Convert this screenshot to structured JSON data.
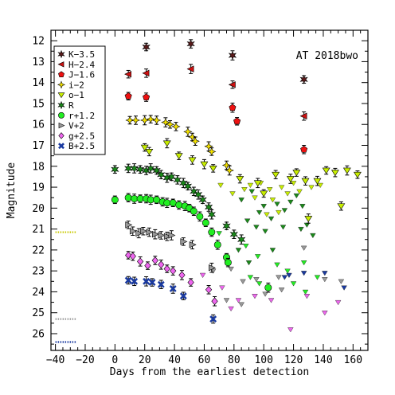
{
  "chart_data": {
    "type": "scatter",
    "title": "",
    "annotation": "AT 2018bwo",
    "xlabel": "Days from the earliest detection",
    "ylabel": "Magnitude",
    "xlim": [
      -43,
      170
    ],
    "ylim": [
      26.8,
      11.5
    ],
    "y_inverted": true,
    "grid": false,
    "legend_position": "top-left",
    "x_ticks": [
      -40,
      -20,
      0,
      20,
      40,
      60,
      80,
      100,
      120,
      140,
      160
    ],
    "y_ticks": [
      12,
      13,
      14,
      15,
      16,
      17,
      18,
      19,
      20,
      21,
      22,
      23,
      24,
      25,
      26
    ],
    "series": [
      {
        "name": "K−3.5",
        "symbol": "star6",
        "color": "#5a1a1a",
        "points": [
          [
            21,
            12.3
          ],
          [
            51,
            12.15
          ],
          [
            79,
            12.7
          ],
          [
            127,
            13.85
          ]
        ]
      },
      {
        "name": "H−2.4",
        "symbol": "tri-left",
        "color": "#cc1111",
        "points": [
          [
            9,
            13.6
          ],
          [
            21,
            13.55
          ],
          [
            51,
            13.35
          ],
          [
            79,
            14.1
          ],
          [
            127,
            15.6
          ]
        ]
      },
      {
        "name": "J−1.6",
        "symbol": "pentagon",
        "color": "#ee1111",
        "points": [
          [
            9,
            14.65
          ],
          [
            21,
            14.7
          ],
          [
            79,
            15.2
          ],
          [
            82,
            15.85
          ],
          [
            127,
            17.2
          ]
        ]
      },
      {
        "name": "i−2",
        "symbol": "star4",
        "color": "#f2e000",
        "points": [
          [
            10,
            15.8
          ],
          [
            14,
            15.8
          ],
          [
            20,
            15.8
          ],
          [
            24,
            15.75
          ],
          [
            28,
            15.8
          ],
          [
            34,
            15.9
          ],
          [
            37,
            16.0
          ],
          [
            41,
            16.1
          ],
          [
            49,
            16.35
          ],
          [
            52,
            16.6
          ],
          [
            54,
            16.8
          ],
          [
            63,
            17.05
          ],
          [
            65,
            17.3
          ],
          [
            75,
            17.95
          ],
          [
            77,
            18.2
          ]
        ]
      },
      {
        "name": "o−1",
        "symbol": "tri-down",
        "color": "#c8ee00",
        "points": [
          [
            20,
            17.1
          ],
          [
            23,
            17.3
          ],
          [
            35,
            16.9
          ],
          [
            43,
            17.5
          ],
          [
            52,
            17.7
          ],
          [
            60,
            17.9
          ],
          [
            66,
            18.1
          ],
          [
            84,
            18.6
          ],
          [
            96,
            18.8
          ],
          [
            100,
            19.3
          ],
          [
            108,
            18.4
          ],
          [
            118,
            18.6
          ],
          [
            122,
            18.3
          ],
          [
            128,
            18.7
          ],
          [
            136,
            18.7
          ],
          [
            142,
            18.2
          ],
          [
            148,
            18.3
          ],
          [
            156,
            18.2
          ],
          [
            163,
            18.4
          ],
          [
            152,
            19.9
          ],
          [
            130,
            20.5
          ]
        ]
      },
      {
        "name": "R",
        "symbol": "star6",
        "color": "#1a8a1a",
        "points": [
          [
            0,
            18.15
          ],
          [
            9,
            18.1
          ],
          [
            13,
            18.1
          ],
          [
            17,
            18.15
          ],
          [
            21,
            18.2
          ],
          [
            24,
            18.1
          ],
          [
            28,
            18.2
          ],
          [
            31,
            18.4
          ],
          [
            35,
            18.55
          ],
          [
            38,
            18.5
          ],
          [
            42,
            18.65
          ],
          [
            46,
            18.8
          ],
          [
            49,
            18.95
          ],
          [
            53,
            19.2
          ],
          [
            56,
            19.35
          ],
          [
            59,
            19.6
          ],
          [
            63,
            19.95
          ],
          [
            65,
            20.3
          ],
          [
            75,
            20.85
          ],
          [
            80,
            21.25
          ],
          [
            85,
            21.5
          ]
        ]
      },
      {
        "name": "r+1.2",
        "symbol": "circle",
        "color": "#22ee22",
        "points": [
          [
            0,
            19.6
          ],
          [
            9,
            19.5
          ],
          [
            13,
            19.55
          ],
          [
            17,
            19.55
          ],
          [
            21,
            19.55
          ],
          [
            24,
            19.6
          ],
          [
            28,
            19.6
          ],
          [
            32,
            19.7
          ],
          [
            35,
            19.75
          ],
          [
            39,
            19.75
          ],
          [
            43,
            19.85
          ],
          [
            47,
            19.9
          ],
          [
            50,
            20.0
          ],
          [
            53,
            20.15
          ],
          [
            57,
            20.4
          ],
          [
            61,
            20.7
          ],
          [
            65,
            21.15
          ],
          [
            69,
            21.75
          ],
          [
            75,
            22.35
          ],
          [
            76,
            22.6
          ],
          [
            103,
            23.8
          ]
        ]
      },
      {
        "name": "V+2",
        "symbol": "tri-right",
        "color": "#999999",
        "points": [
          [
            9,
            20.8
          ],
          [
            12,
            21.1
          ],
          [
            16,
            21.2
          ],
          [
            19,
            21.1
          ],
          [
            23,
            21.15
          ],
          [
            27,
            21.25
          ],
          [
            31,
            21.3
          ],
          [
            35,
            21.35
          ],
          [
            38,
            21.3
          ],
          [
            46,
            21.6
          ],
          [
            52,
            21.75
          ],
          [
            65,
            22.85
          ]
        ]
      },
      {
        "name": "g+2.5",
        "symbol": "diamond",
        "color": "#ee66ee",
        "points": [
          [
            9,
            22.25
          ],
          [
            12,
            22.3
          ],
          [
            17,
            22.55
          ],
          [
            22,
            22.75
          ],
          [
            27,
            22.5
          ],
          [
            31,
            22.7
          ],
          [
            35,
            22.9
          ],
          [
            39,
            23.0
          ],
          [
            45,
            23.2
          ],
          [
            51,
            23.55
          ],
          [
            63,
            23.9
          ],
          [
            67,
            24.45
          ]
        ]
      },
      {
        "name": "B+2.5",
        "symbol": "cross",
        "color": "#1a3aa0",
        "points": [
          [
            9,
            23.45
          ],
          [
            13,
            23.5
          ],
          [
            21,
            23.5
          ],
          [
            25,
            23.55
          ],
          [
            31,
            23.65
          ],
          [
            39,
            23.85
          ],
          [
            46,
            24.2
          ],
          [
            66,
            25.3
          ]
        ]
      }
    ],
    "upper_limits": [
      {
        "color": "#c8ee00",
        "points": [
          [
            71,
            18.9
          ],
          [
            79,
            19.3
          ],
          [
            87,
            19.1
          ],
          [
            91,
            18.9
          ],
          [
            94,
            19.5
          ],
          [
            98,
            18.8
          ],
          [
            104,
            19.1
          ],
          [
            106,
            19.6
          ],
          [
            112,
            19.0
          ],
          [
            116,
            19.3
          ],
          [
            120,
            18.8
          ],
          [
            124,
            19.2
          ],
          [
            132,
            19.0
          ],
          [
            138,
            18.9
          ],
          [
            102,
            20.3
          ],
          [
            110,
            20.2
          ]
        ]
      },
      {
        "color": "#1a8a1a",
        "points": [
          [
            85,
            19.6
          ],
          [
            92,
            19.2
          ],
          [
            97,
            20.2
          ],
          [
            100,
            19.9
          ],
          [
            105,
            20.5
          ],
          [
            109,
            19.8
          ],
          [
            114,
            20.1
          ],
          [
            118,
            19.7
          ],
          [
            122,
            19.4
          ],
          [
            126,
            19.9
          ],
          [
            129,
            20.8
          ],
          [
            133,
            21.3
          ],
          [
            89,
            20.6
          ],
          [
            95,
            20.9
          ],
          [
            101,
            21.1
          ],
          [
            113,
            20.9
          ],
          [
            125,
            21.0
          ],
          [
            83,
            22.0
          ],
          [
            90,
            22.6
          ],
          [
            106,
            22.0
          ]
        ]
      },
      {
        "color": "#22ee22",
        "points": [
          [
            70,
            21.2
          ],
          [
            88,
            21.8
          ],
          [
            96,
            22.3
          ],
          [
            109,
            22.7
          ],
          [
            116,
            23.0
          ],
          [
            127,
            22.6
          ],
          [
            91,
            23.3
          ],
          [
            97,
            23.6
          ],
          [
            120,
            23.6
          ],
          [
            128,
            24.0
          ],
          [
            136,
            23.3
          ]
        ]
      },
      {
        "color": "#999999",
        "points": [
          [
            66,
            23.0
          ],
          [
            78,
            22.9
          ],
          [
            86,
            23.5
          ],
          [
            95,
            23.4
          ],
          [
            110,
            23.3
          ],
          [
            112,
            23.9
          ],
          [
            127,
            21.9
          ],
          [
            141,
            23.4
          ],
          [
            152,
            23.5
          ],
          [
            75,
            24.4
          ],
          [
            85,
            24.6
          ],
          [
            101,
            24.1
          ]
        ]
      },
      {
        "color": "#ee66ee",
        "points": [
          [
            59,
            23.2
          ],
          [
            72,
            23.8
          ],
          [
            78,
            24.8
          ],
          [
            83,
            24.4
          ],
          [
            94,
            24.2
          ],
          [
            105,
            24.4
          ],
          [
            118,
            25.8
          ],
          [
            141,
            25.0
          ],
          [
            150,
            24.5
          ],
          [
            129,
            24.2
          ]
        ]
      },
      {
        "color": "#1a3aa0",
        "points": [
          [
            114,
            23.3
          ],
          [
            117,
            23.2
          ],
          [
            127,
            23.1
          ],
          [
            141,
            23.1
          ],
          [
            154,
            23.8
          ]
        ]
      }
    ],
    "reference_lines": [
      {
        "color": "#c8c800",
        "y": 21.15,
        "x": [
          -40,
          -26
        ]
      },
      {
        "color": "#999999",
        "y": 25.3,
        "x": [
          -40,
          -26
        ]
      },
      {
        "color": "#1a3aa0",
        "y": 26.4,
        "x": [
          -40,
          -26
        ]
      }
    ]
  }
}
